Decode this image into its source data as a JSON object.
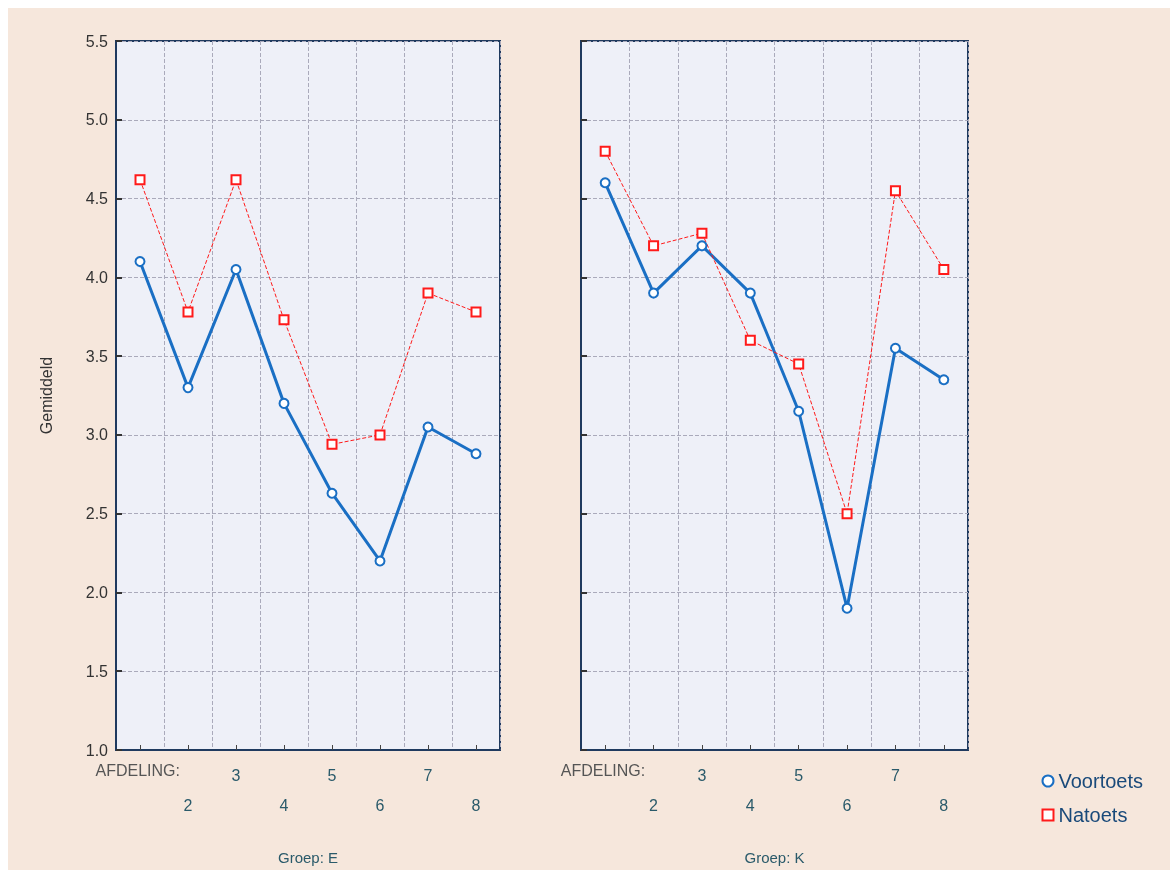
{
  "chart_data": [
    {
      "type": "line",
      "ylabel": "Gemiddeld",
      "xlabel": "Groep: E",
      "annotations": [
        "AFDELING:"
      ],
      "categories": [
        null,
        "2",
        "3",
        "4",
        "5",
        "6",
        "7",
        "8"
      ],
      "series": [
        {
          "color": "#1a6fc4",
          "marker": "circle",
          "line_style": "solid",
          "values": [
            4.1,
            3.3,
            4.05,
            3.2,
            2.63,
            2.2,
            3.05,
            2.88
          ]
        },
        {
          "color": "#ff1a1a",
          "marker": "square",
          "line_style": "dashed",
          "values": [
            4.62,
            3.78,
            4.62,
            3.73,
            2.94,
            3.0,
            3.9,
            3.78
          ]
        }
      ],
      "ylim": [
        1.0,
        5.5
      ],
      "yticks": [
        {
          "value": 1,
          "label": "1.0"
        },
        1.5,
        {
          "value": 2,
          "label": "2.0"
        },
        2.5,
        {
          "value": 3,
          "label": "3.0"
        },
        3.5,
        {
          "value": 4,
          "label": "4.0"
        },
        4.5,
        {
          "value": 5,
          "label": "5.0"
        },
        5.5
      ],
      "grid": true,
      "legend": false
    },
    {
      "type": "line",
      "xlabel": "Groep: K",
      "annotations": [
        "AFDELING:"
      ],
      "categories": [
        null,
        "2",
        "3",
        "4",
        "5",
        "6",
        "7",
        "8"
      ],
      "series": [
        {
          "name": "Voortoets",
          "color": "#1a6fc4",
          "marker": "circle",
          "line_style": "solid",
          "values": [
            4.6,
            3.9,
            4.2,
            3.9,
            3.15,
            1.9,
            3.55,
            3.35
          ]
        },
        {
          "name": "Natoets",
          "color": "#ff1a1a",
          "marker": "square",
          "line_style": "dashed",
          "values": [
            4.8,
            4.2,
            4.28,
            3.6,
            3.45,
            2.5,
            4.55,
            4.05
          ]
        }
      ],
      "ylim": [
        1.0,
        5.5
      ],
      "yticks": [
        1,
        1.5,
        2,
        2.5,
        3,
        3.5,
        4,
        4.5,
        5,
        5.5
      ],
      "grid": true,
      "legend": "bottom right",
      "tick_labels": "x"
    }
  ]
}
